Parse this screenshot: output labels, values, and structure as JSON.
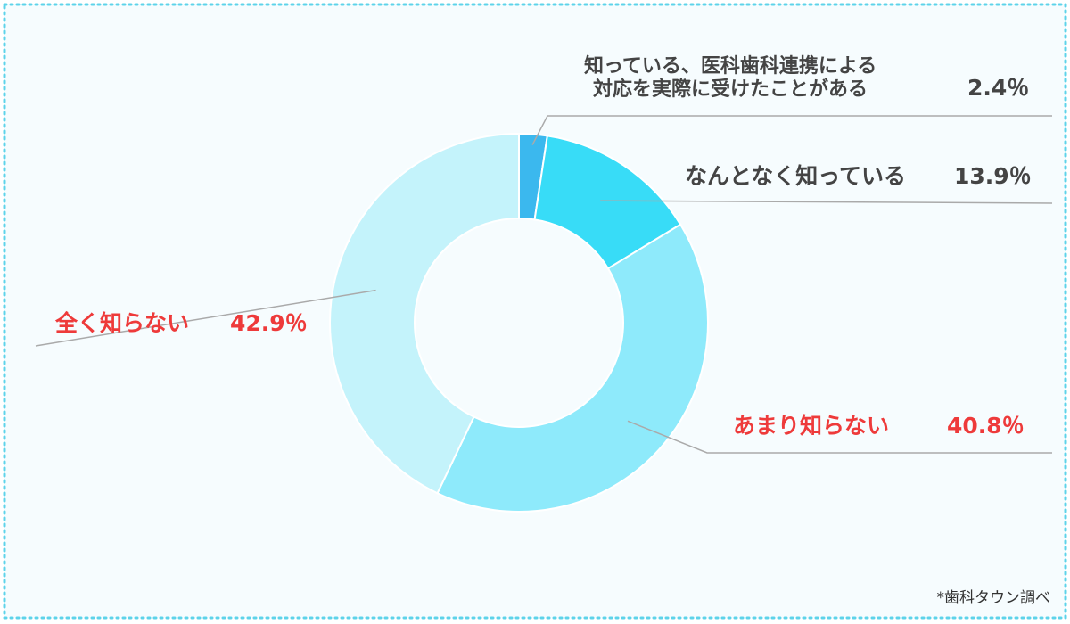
{
  "chart_data": {
    "type": "pie",
    "style": "donut",
    "categories": [
      "知っている、医科歯科連携による対応を実際に受けたことがある",
      "なんとなく知っている",
      "あまり知らない",
      "全く知らない"
    ],
    "category_lines": [
      [
        "知っている、医科歯科連携による",
        "対応を実際に受けたことがある"
      ],
      [
        "なんとなく知っている"
      ],
      [
        "あまり知らない"
      ],
      [
        "全く知らない"
      ]
    ],
    "values": [
      2.4,
      13.9,
      40.8,
      42.9
    ],
    "value_labels": [
      "2.4％",
      "13.9％",
      "40.8％",
      "42.9％"
    ],
    "colors": [
      "#3bb8ee",
      "#38dcf7",
      "#8eeafb",
      "#c4f3fb"
    ],
    "label_colors": [
      "#444444",
      "#444444",
      "#ee3a3a",
      "#ee3a3a"
    ],
    "unit": "%",
    "legend": "none",
    "title": ""
  },
  "source_note": "*歯科タウン調べ",
  "colors": {
    "background": "#f6fcfe",
    "frame_border": "#5dd3ea",
    "leader_line": "#aaaaaa"
  }
}
